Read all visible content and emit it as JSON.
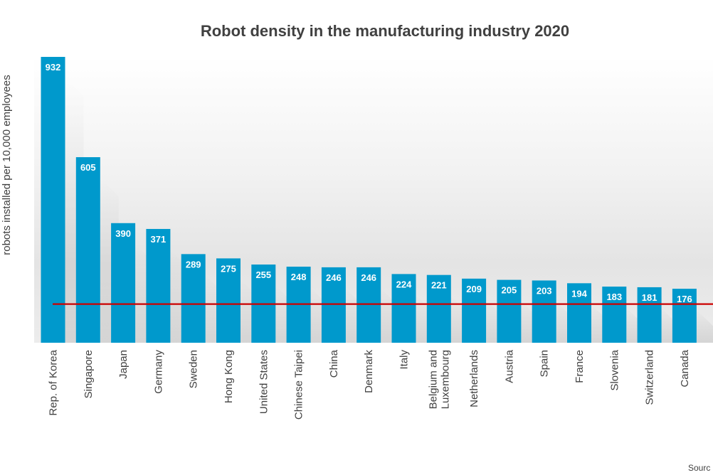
{
  "chart_data": {
    "type": "bar",
    "title": "Robot density in the manufacturing industry 2020",
    "ylabel": "robots installed per 10,000 employees",
    "xlabel": "",
    "categories": [
      [
        "Rep. of Korea"
      ],
      [
        "Singapore"
      ],
      [
        "Japan"
      ],
      [
        "Germany"
      ],
      [
        "Sweden"
      ],
      [
        "Hong Kong"
      ],
      [
        "United States"
      ],
      [
        "Chinese Taipei"
      ],
      [
        "China"
      ],
      [
        "Denmark"
      ],
      [
        "Italy"
      ],
      [
        "Belgium and",
        "Luxembourg"
      ],
      [
        "Netherlands"
      ],
      [
        "Austria"
      ],
      [
        "Spain"
      ],
      [
        "France"
      ],
      [
        "Slovenia"
      ],
      [
        "Switzerland"
      ],
      [
        "Canada"
      ],
      [
        ""
      ]
    ],
    "values": [
      932,
      605,
      390,
      371,
      289,
      275,
      255,
      248,
      246,
      246,
      224,
      221,
      209,
      205,
      203,
      194,
      183,
      181,
      176,
      0
    ],
    "value_labels": [
      "932",
      "605",
      "390",
      "371",
      "289",
      "275",
      "255",
      "248",
      "246",
      "246",
      "224",
      "221",
      "209",
      "205",
      "203",
      "194",
      "183",
      "181",
      "176",
      ""
    ],
    "reference_line_value": 126,
    "ylim": [
      0,
      932
    ],
    "grid": false,
    "bar_color": "#0099CC",
    "reference_line_color": "#CC0000",
    "text_color": "#404040",
    "source_text": "Sourc"
  }
}
